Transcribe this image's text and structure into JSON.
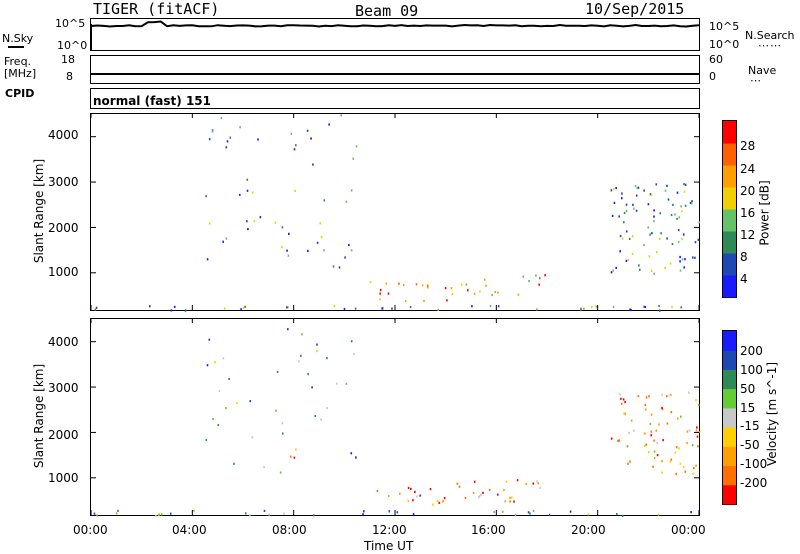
{
  "header": {
    "radar": "TIGER (fitACF)",
    "beam": "Beam 09",
    "date": "10/Sep/2015"
  },
  "left_labels": {
    "nsky": "N.Sky",
    "freq_line1": "Freq.",
    "freq_line2": "[MHz]",
    "cpid": "CPID"
  },
  "right_labels": {
    "nsearch": "N.Search",
    "nave": "Nave"
  },
  "cpid_text": "normal (fast) 151",
  "top_panels": {
    "nsky_ticks_left": [
      "10^5",
      "10^0"
    ],
    "nsky_ticks_right": [
      "10^5",
      "10^0"
    ],
    "freq_ticks_left": [
      "18",
      "8"
    ],
    "nave_ticks_right": [
      "60",
      "0"
    ]
  },
  "xaxis": {
    "title": "Time UT",
    "ticks": [
      "00:00",
      "04:00",
      "08:00",
      "12:00",
      "16:00",
      "20:00",
      "00:00"
    ]
  },
  "power_colorbar": {
    "title": "Power [dB]",
    "ticks": [
      "4",
      "8",
      "12",
      "16",
      "20",
      "24",
      "28"
    ],
    "colors": [
      "#1a1aff",
      "#1e48b4",
      "#2e8b57",
      "#66c266",
      "#f0d000",
      "#ffa000",
      "#ff6000",
      "#ff0000"
    ]
  },
  "velocity_colorbar": {
    "title": "Velocity [m s^-1]",
    "ticks": [
      "200",
      "100",
      "50",
      "15",
      "-15",
      "-50",
      "-100",
      "-200"
    ],
    "colors": [
      "#1a1aff",
      "#1e48b4",
      "#2e8b57",
      "#66cc33",
      "#c8c8c8",
      "#ffd000",
      "#ffa000",
      "#ff7000",
      "#ff0000"
    ]
  },
  "chart_data": [
    {
      "type": "heatmap",
      "title": "Power",
      "xlabel": "Time UT",
      "ylabel": "Slant Range [km]",
      "x_ticks": [
        "00:00",
        "04:00",
        "08:00",
        "12:00",
        "16:00",
        "20:00",
        "00:00"
      ],
      "y_ticks": [
        1000,
        2000,
        3000,
        4000
      ],
      "ylim": [
        180,
        4500
      ],
      "colorbar_label": "Power [dB]",
      "colorbar_ticks": [
        4,
        8,
        12,
        16,
        20,
        24,
        28
      ],
      "regions": [
        {
          "t": [
            0,
            24
          ],
          "r": [
            180,
            300
          ],
          "level": "low-mixed"
        },
        {
          "t": [
            4.5,
            10.5
          ],
          "r": [
            1100,
            4500
          ],
          "level": "sparse-low"
        },
        {
          "t": [
            7.3,
            8.3
          ],
          "r": [
            1200,
            1600
          ],
          "level": "mid-high"
        },
        {
          "t": [
            11,
            14.5
          ],
          "r": [
            400,
            850
          ],
          "level": "mid-high"
        },
        {
          "t": [
            14.5,
            18
          ],
          "r": [
            500,
            1000
          ],
          "level": "mid-high"
        },
        {
          "t": [
            20.5,
            24
          ],
          "r": [
            1000,
            3000
          ],
          "level": "low-mid"
        }
      ]
    },
    {
      "type": "heatmap",
      "title": "Velocity",
      "xlabel": "Time UT",
      "ylabel": "Slant Range [km]",
      "x_ticks": [
        "00:00",
        "04:00",
        "08:00",
        "12:00",
        "16:00",
        "20:00",
        "00:00"
      ],
      "y_ticks": [
        1000,
        2000,
        3000,
        4000
      ],
      "ylim": [
        180,
        4500
      ],
      "colorbar_label": "Velocity [m s^-1]",
      "colorbar_ticks": [
        200,
        100,
        50,
        15,
        -15,
        -50,
        -100,
        -200
      ],
      "regions": [
        {
          "t": [
            0,
            24
          ],
          "r": [
            180,
            300
          ],
          "level": "mixed"
        },
        {
          "t": [
            4.5,
            10.5
          ],
          "r": [
            1100,
            4500
          ],
          "level": "mixed-sparse"
        },
        {
          "t": [
            7.5,
            8.2
          ],
          "r": [
            1300,
            1600
          ],
          "level": "positive-high"
        },
        {
          "t": [
            11,
            14
          ],
          "r": [
            400,
            850
          ],
          "level": "mixed-negative"
        },
        {
          "t": [
            14,
            18
          ],
          "r": [
            450,
            1000
          ],
          "level": "negative"
        },
        {
          "t": [
            20.5,
            24
          ],
          "r": [
            1100,
            2900
          ],
          "level": "negative-high"
        }
      ]
    },
    {
      "type": "line",
      "title": "N.Sky",
      "ylabel": "N.Sky",
      "y_ticks": [
        "10^0",
        "10^5"
      ],
      "note": "near-constant trace close to the 10^5 level across the day"
    },
    {
      "type": "line",
      "title": "Freq.",
      "ylabel": "Freq. [MHz]",
      "y_ticks": [
        8,
        18
      ],
      "right_ticks": [
        0,
        60
      ],
      "note": "near-constant frequency trace just above 8 MHz"
    }
  ]
}
